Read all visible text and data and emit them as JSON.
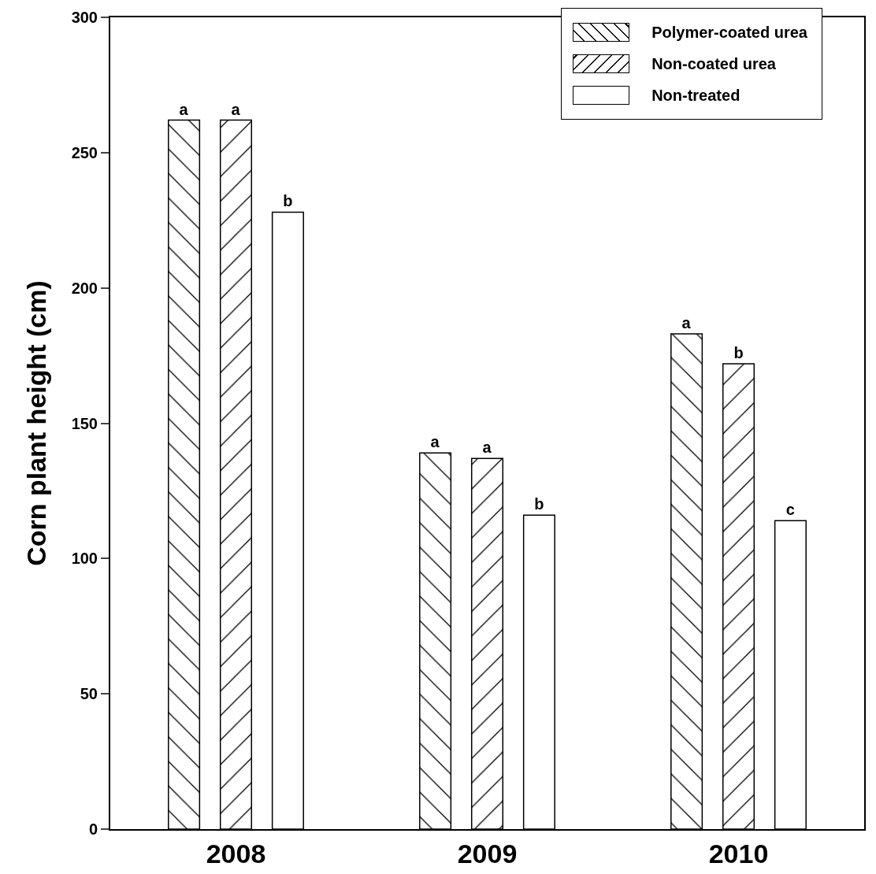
{
  "chart_data": {
    "type": "bar",
    "ylabel": "Corn plant height (cm)",
    "categories": [
      "2008",
      "2009",
      "2010"
    ],
    "series": [
      {
        "name": "Polymer-coated urea",
        "color": "#000000",
        "values": [
          262,
          139,
          183
        ],
        "value_labels": [
          "a",
          "a",
          "a"
        ]
      },
      {
        "name": "Non-coated urea",
        "color": "#000000",
        "values": [
          262,
          137,
          172
        ],
        "value_labels": [
          "a",
          "a",
          "b"
        ]
      },
      {
        "name": "Non-treated",
        "color": "#ffffff",
        "values": [
          228,
          116,
          114
        ],
        "value_labels": [
          "b",
          "b",
          "c"
        ]
      }
    ],
    "ylim": [
      0,
      300
    ],
    "yticks": [
      0,
      50,
      100,
      150,
      200,
      250,
      300
    ],
    "grid": false,
    "legend": "top right"
  }
}
